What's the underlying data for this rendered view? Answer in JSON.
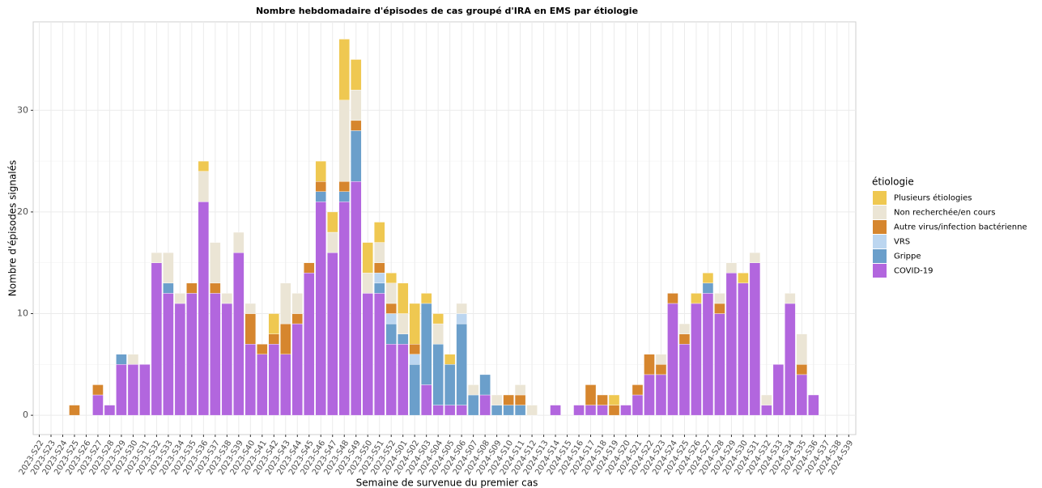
{
  "chart_data": {
    "type": "stacked_bar",
    "title": "Nombre hebdomadaire d'épisodes de cas groupé d'IRA en EMS par étiologie",
    "x_label": "Semaine de survenue du premier cas",
    "y_label": "Nombre d'épisodes signalés",
    "legend_title": "étiologie",
    "categories": [
      "2023-S22",
      "2023-S23",
      "2023-S24",
      "2023-S25",
      "2023-S26",
      "2023-S27",
      "2023-S28",
      "2023-S29",
      "2023-S30",
      "2023-S31",
      "2023-S32",
      "2023-S33",
      "2023-S34",
      "2023-S35",
      "2023-S36",
      "2023-S37",
      "2023-S38",
      "2023-S39",
      "2023-S40",
      "2023-S41",
      "2023-S42",
      "2023-S43",
      "2023-S44",
      "2023-S45",
      "2023-S46",
      "2023-S47",
      "2023-S48",
      "2023-S49",
      "2023-S50",
      "2023-S51",
      "2023-S52",
      "2024-S01",
      "2024-S02",
      "2024-S03",
      "2024-S04",
      "2024-S05",
      "2024-S06",
      "2024-S07",
      "2024-S08",
      "2024-S09",
      "2024-S10",
      "2024-S11",
      "2024-S12",
      "2024-S13",
      "2024-S14",
      "2024-S15",
      "2024-S16",
      "2024-S17",
      "2024-S18",
      "2024-S19",
      "2024-S20",
      "2024-S21",
      "2024-S22",
      "2024-S23",
      "2024-S24",
      "2024-S25",
      "2024-S26",
      "2024-S27",
      "2024-S28",
      "2024-S29",
      "2024-S30",
      "2024-S31",
      "2024-S32",
      "2024-S33",
      "2024-S34",
      "2024-S35",
      "2024-S36",
      "2024-S37",
      "2024-S38",
      "2024-S39"
    ],
    "series": [
      {
        "name": "COVID-19",
        "color": "#b266de",
        "values": [
          0,
          0,
          0,
          0,
          0,
          2,
          1,
          5,
          5,
          5,
          15,
          12,
          11,
          12,
          21,
          12,
          11,
          16,
          7,
          6,
          7,
          6,
          9,
          14,
          21,
          16,
          21,
          23,
          12,
          12,
          7,
          7,
          0,
          3,
          1,
          1,
          1,
          0,
          2,
          0,
          0,
          0,
          0,
          0,
          1,
          0,
          1,
          1,
          1,
          0,
          1,
          2,
          4,
          4,
          11,
          7,
          11,
          12,
          10,
          14,
          13,
          15,
          1,
          5,
          11,
          4,
          2,
          0,
          0,
          0
        ]
      },
      {
        "name": "Grippe",
        "color": "#6b9fcb",
        "values": [
          0,
          0,
          0,
          0,
          0,
          0,
          0,
          1,
          0,
          0,
          0,
          1,
          0,
          0,
          0,
          0,
          0,
          0,
          0,
          0,
          0,
          0,
          0,
          0,
          1,
          0,
          1,
          5,
          0,
          1,
          2,
          1,
          5,
          8,
          6,
          4,
          8,
          2,
          2,
          1,
          1,
          1,
          0,
          0,
          0,
          0,
          0,
          0,
          0,
          0,
          0,
          0,
          0,
          0,
          0,
          0,
          0,
          1,
          0,
          0,
          0,
          0,
          0,
          0,
          0,
          0,
          0,
          0,
          0,
          0
        ]
      },
      {
        "name": "VRS",
        "color": "#bcd6f0",
        "values": [
          0,
          0,
          0,
          0,
          0,
          0,
          0,
          0,
          0,
          0,
          0,
          0,
          0,
          0,
          0,
          0,
          0,
          0,
          0,
          0,
          0,
          0,
          0,
          0,
          0,
          0,
          0,
          0,
          0,
          1,
          1,
          0,
          1,
          0,
          0,
          0,
          1,
          0,
          0,
          0,
          0,
          0,
          0,
          0,
          0,
          0,
          0,
          0,
          0,
          0,
          0,
          0,
          0,
          0,
          0,
          0,
          0,
          0,
          0,
          0,
          0,
          0,
          0,
          0,
          0,
          0,
          0,
          0,
          0,
          0
        ]
      },
      {
        "name": "Autre virus/infection bactérienne",
        "color": "#d6862e",
        "values": [
          0,
          0,
          0,
          1,
          0,
          1,
          0,
          0,
          0,
          0,
          0,
          0,
          0,
          1,
          0,
          1,
          0,
          0,
          3,
          1,
          1,
          3,
          1,
          1,
          1,
          0,
          1,
          1,
          0,
          1,
          1,
          0,
          1,
          0,
          0,
          0,
          0,
          0,
          0,
          0,
          1,
          1,
          0,
          0,
          0,
          0,
          0,
          2,
          1,
          1,
          0,
          1,
          2,
          1,
          1,
          1,
          0,
          0,
          1,
          0,
          0,
          0,
          0,
          0,
          0,
          1,
          0,
          0,
          0,
          0
        ]
      },
      {
        "name": "Non recherchée/en cours",
        "color": "#ebe5d5",
        "values": [
          0,
          0,
          0,
          0,
          0,
          0,
          0,
          0,
          1,
          0,
          1,
          3,
          1,
          0,
          3,
          4,
          1,
          2,
          1,
          0,
          0,
          4,
          2,
          0,
          0,
          2,
          8,
          3,
          2,
          2,
          2,
          2,
          0,
          0,
          2,
          0,
          1,
          1,
          0,
          1,
          0,
          1,
          1,
          0,
          0,
          0,
          0,
          0,
          0,
          0,
          0,
          0,
          0,
          1,
          0,
          1,
          0,
          0,
          1,
          1,
          0,
          1,
          1,
          0,
          1,
          3,
          0,
          0,
          0,
          0
        ]
      },
      {
        "name": "Plusieurs étiologies",
        "color": "#efc851",
        "values": [
          0,
          0,
          0,
          0,
          0,
          0,
          0,
          0,
          0,
          0,
          0,
          0,
          0,
          0,
          1,
          0,
          0,
          0,
          0,
          0,
          2,
          0,
          0,
          0,
          2,
          2,
          6,
          3,
          3,
          2,
          1,
          3,
          4,
          1,
          1,
          1,
          0,
          0,
          0,
          0,
          0,
          0,
          0,
          0,
          0,
          0,
          0,
          0,
          0,
          1,
          0,
          0,
          0,
          0,
          0,
          0,
          1,
          1,
          0,
          0,
          1,
          0,
          0,
          0,
          0,
          0,
          0,
          0,
          0,
          0
        ]
      }
    ],
    "ylim": [
      -1.9,
      38.7
    ],
    "yticks": [
      0,
      10,
      20,
      30
    ],
    "grid": true,
    "legend": "right"
  }
}
